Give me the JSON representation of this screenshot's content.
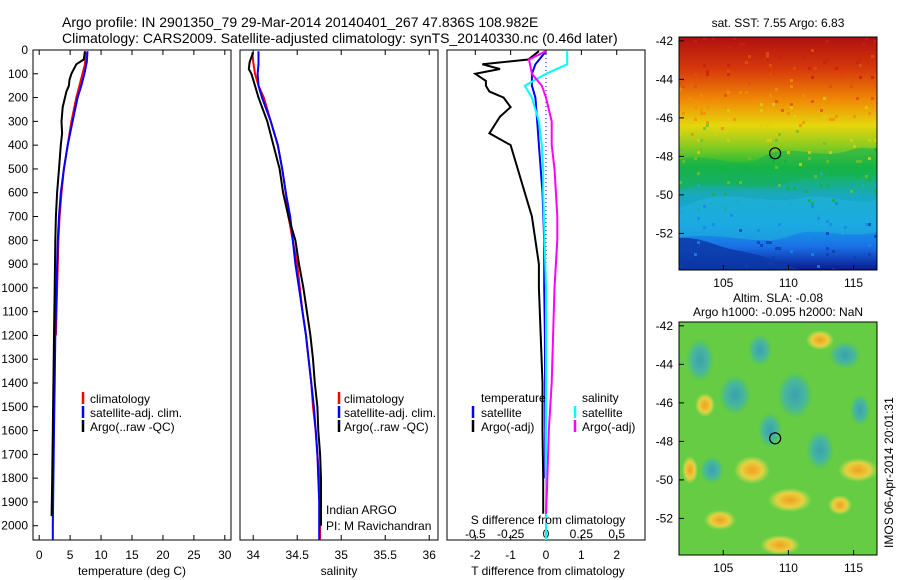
{
  "figure": {
    "title_line1": "Argo profile: IN 2901350_79 29-Mar-2014 20140401_267 47.836S 108.982E",
    "title_line2": "Climatology: CARS2009. Satellite-adjusted climatology: synTS_20140330.nc (0.46d later)",
    "credit": "IMOS 06-Apr-2014 20:01:31"
  },
  "colors": {
    "climatology": "#ff0000",
    "satellite": "#0000ff",
    "argo": "#000000",
    "sal_satellite": "#00ffff",
    "sal_argo": "#ff00ff"
  },
  "chart_data": [
    {
      "type": "line",
      "id": "temperature",
      "xlabel": "temperature (deg C)",
      "xlim": [
        -1,
        31
      ],
      "xticks": [
        0,
        5,
        10,
        15,
        20,
        25,
        30
      ],
      "ylim": [
        0,
        2060
      ],
      "yticks": [
        0,
        100,
        200,
        300,
        400,
        500,
        600,
        700,
        800,
        900,
        1000,
        1100,
        1200,
        1300,
        1400,
        1500,
        1600,
        1700,
        1800,
        1900,
        2000
      ],
      "legend": [
        "climatology",
        "satellite-adj. clim.",
        "Argo(..raw -QC)"
      ],
      "legend_pos": "lower-right",
      "series": [
        {
          "name": "climatology",
          "color": "#ff0000",
          "points": [
            [
              7.5,
              10
            ],
            [
              7.4,
              60
            ],
            [
              7.0,
              100
            ],
            [
              6.5,
              150
            ],
            [
              6.0,
              200
            ],
            [
              5.2,
              300
            ],
            [
              4.6,
              400
            ],
            [
              4.0,
              500
            ],
            [
              3.6,
              600
            ],
            [
              3.3,
              700
            ],
            [
              3.1,
              800
            ],
            [
              3.0,
              900
            ],
            [
              2.9,
              1000
            ],
            [
              2.8,
              1100
            ],
            [
              2.7,
              1200
            ]
          ]
        },
        {
          "name": "satellite-adj. clim.",
          "color": "#0000ff",
          "points": [
            [
              7.8,
              5
            ],
            [
              7.7,
              50
            ],
            [
              7.3,
              100
            ],
            [
              6.8,
              150
            ],
            [
              6.2,
              200
            ],
            [
              5.4,
              300
            ],
            [
              4.6,
              400
            ],
            [
              4.0,
              500
            ],
            [
              3.5,
              600
            ],
            [
              3.2,
              700
            ],
            [
              3.0,
              800
            ],
            [
              2.9,
              900
            ],
            [
              2.8,
              1000
            ],
            [
              2.7,
              1100
            ],
            [
              2.6,
              1200
            ],
            [
              2.5,
              1400
            ],
            [
              2.4,
              1600
            ],
            [
              2.3,
              1800
            ],
            [
              2.2,
              2000
            ],
            [
              2.2,
              2060
            ]
          ]
        },
        {
          "name": "Argo(..raw -QC)",
          "color": "#000000",
          "points": [
            [
              7.4,
              5
            ],
            [
              7.2,
              40
            ],
            [
              6.0,
              60
            ],
            [
              5.2,
              100
            ],
            [
              4.9,
              125
            ],
            [
              4.8,
              150
            ],
            [
              4.4,
              175
            ],
            [
              3.8,
              240
            ],
            [
              3.6,
              300
            ],
            [
              3.7,
              350
            ],
            [
              3.5,
              400
            ],
            [
              3.2,
              500
            ],
            [
              2.9,
              600
            ],
            [
              2.7,
              700
            ],
            [
              2.6,
              800
            ],
            [
              2.5,
              1000
            ],
            [
              2.4,
              1200
            ],
            [
              2.3,
              1400
            ],
            [
              2.2,
              1600
            ],
            [
              2.1,
              1800
            ],
            [
              2.0,
              1960
            ]
          ]
        }
      ]
    },
    {
      "type": "line",
      "id": "salinity",
      "xlabel": "salinity",
      "xlim": [
        33.85,
        36.1
      ],
      "xticks": [
        34,
        34.5,
        35,
        35.5,
        36
      ],
      "ylim": [
        0,
        2060
      ],
      "legend": [
        "climatology",
        "satellite-adj. clim.",
        "Argo(..raw -QC)"
      ],
      "legend_pos": "lower-right",
      "annotation_line1": "Indian ARGO",
      "annotation_line2": "PI: M Ravichandran",
      "series": [
        {
          "name": "climatology",
          "color": "#ff0000",
          "points": [
            [
              33.99,
              10
            ],
            [
              34.0,
              50
            ],
            [
              34.02,
              100
            ],
            [
              34.06,
              150
            ],
            [
              34.12,
              200
            ],
            [
              34.2,
              300
            ],
            [
              34.28,
              400
            ],
            [
              34.33,
              500
            ],
            [
              34.37,
              600
            ],
            [
              34.4,
              700
            ],
            [
              34.45,
              800
            ],
            [
              34.5,
              900
            ],
            [
              34.53,
              1000
            ],
            [
              34.56,
              1100
            ],
            [
              34.6,
              1200
            ],
            [
              34.63,
              1300
            ],
            [
              34.66,
              1400
            ],
            [
              34.68,
              1500
            ],
            [
              34.71,
              1600
            ],
            [
              34.73,
              1700
            ],
            [
              34.75,
              1800
            ],
            [
              34.76,
              1900
            ],
            [
              34.76,
              2060
            ]
          ]
        },
        {
          "name": "satellite-adj. clim.",
          "color": "#0000ff",
          "points": [
            [
              34.06,
              5
            ],
            [
              34.06,
              60
            ],
            [
              34.05,
              100
            ],
            [
              34.06,
              150
            ],
            [
              34.1,
              200
            ],
            [
              34.2,
              300
            ],
            [
              34.28,
              400
            ],
            [
              34.33,
              500
            ],
            [
              34.37,
              600
            ],
            [
              34.42,
              700
            ],
            [
              34.45,
              800
            ],
            [
              34.48,
              900
            ],
            [
              34.52,
              1000
            ],
            [
              34.56,
              1100
            ],
            [
              34.6,
              1200
            ],
            [
              34.63,
              1300
            ],
            [
              34.66,
              1400
            ],
            [
              34.69,
              1500
            ],
            [
              34.71,
              1600
            ],
            [
              34.73,
              1700
            ],
            [
              34.74,
              1800
            ],
            [
              34.75,
              1900
            ],
            [
              34.75,
              2060
            ]
          ]
        },
        {
          "name": "Argo(..raw -QC)",
          "color": "#000000",
          "points": [
            [
              34.0,
              10
            ],
            [
              33.96,
              50
            ],
            [
              33.95,
              80
            ],
            [
              33.98,
              100
            ],
            [
              34.02,
              150
            ],
            [
              34.06,
              200
            ],
            [
              34.16,
              300
            ],
            [
              34.23,
              400
            ],
            [
              34.3,
              500
            ],
            [
              34.34,
              600
            ],
            [
              34.4,
              700
            ],
            [
              34.48,
              800
            ],
            [
              34.52,
              900
            ],
            [
              34.57,
              1000
            ],
            [
              34.61,
              1100
            ],
            [
              34.65,
              1200
            ],
            [
              34.68,
              1300
            ],
            [
              34.7,
              1400
            ],
            [
              34.73,
              1500
            ],
            [
              34.74,
              1600
            ],
            [
              34.76,
              1700
            ],
            [
              34.77,
              1800
            ],
            [
              34.77,
              1900
            ],
            [
              34.77,
              2000
            ]
          ]
        }
      ]
    },
    {
      "type": "line",
      "id": "difference",
      "xlabel": "T difference from climatology",
      "xlabel_top": "S difference from climatology",
      "xlim": [
        -2.8,
        2.8
      ],
      "xticks": [
        -2,
        -1,
        0,
        1,
        2
      ],
      "s_ticks": [
        {
          "v": -0.5,
          "label": "-0.5"
        },
        {
          "v": -0.25,
          "label": "-0.25"
        },
        {
          "v": 0,
          "label": "0"
        },
        {
          "v": 0.25,
          "label": "0.25"
        },
        {
          "v": 0.5,
          "label": "0.5"
        }
      ],
      "s_scale": 4,
      "ylim": [
        0,
        2060
      ],
      "legend_temperature_title": "temperature",
      "legend_salinity_title": "salinity",
      "legend": [
        "satellite",
        "Argo(-adj)",
        "satellite",
        "Argo(-adj)"
      ],
      "series": [
        {
          "name": "T satellite",
          "color": "#0000ff",
          "points": [
            [
              0,
              5
            ],
            [
              -0.3,
              60
            ],
            [
              -0.4,
              100
            ],
            [
              -0.4,
              150
            ],
            [
              -0.3,
              200
            ],
            [
              -0.25,
              300
            ],
            [
              -0.2,
              400
            ],
            [
              -0.15,
              500
            ],
            [
              -0.1,
              600
            ],
            [
              -0.05,
              800
            ],
            [
              -0.05,
              1000
            ],
            [
              -0.03,
              1200
            ],
            [
              -0.02,
              1600
            ],
            [
              -0.02,
              1800
            ]
          ]
        },
        {
          "name": "T Argo(-adj)",
          "color": "#000000",
          "points": [
            [
              -0.2,
              5
            ],
            [
              -0.5,
              40
            ],
            [
              -1.8,
              60
            ],
            [
              -1.3,
              80
            ],
            [
              -2.0,
              100
            ],
            [
              -1.7,
              130
            ],
            [
              -1.7,
              150
            ],
            [
              -1.6,
              175
            ],
            [
              -1.2,
              200
            ],
            [
              -1.0,
              240
            ],
            [
              -1.3,
              280
            ],
            [
              -1.6,
              350
            ],
            [
              -1.0,
              400
            ],
            [
              -0.8,
              500
            ],
            [
              -0.6,
              600
            ],
            [
              -0.4,
              700
            ],
            [
              -0.3,
              800
            ],
            [
              -0.2,
              900
            ],
            [
              -0.2,
              1000
            ],
            [
              -0.15,
              1200
            ],
            [
              -0.1,
              1400
            ],
            [
              -0.1,
              1600
            ],
            [
              -0.08,
              1800
            ],
            [
              -0.08,
              1950
            ]
          ]
        },
        {
          "name": "S satellite",
          "color": "#00ffff",
          "points": [
            [
              0.15,
              5
            ],
            [
              0.15,
              60
            ],
            [
              0,
              100
            ],
            [
              -0.15,
              150
            ],
            [
              -0.1,
              200
            ],
            [
              -0.05,
              300
            ],
            [
              -0.03,
              400
            ],
            [
              -0.02,
              500
            ],
            [
              -0.02,
              600
            ],
            [
              -0.01,
              800
            ],
            [
              0,
              1000
            ],
            [
              0,
              1200
            ],
            [
              0,
              1600
            ],
            [
              0,
              1800
            ],
            [
              0,
              2000
            ],
            [
              0,
              2060
            ]
          ]
        },
        {
          "name": "S Argo(-adj)",
          "color": "#ff00ff",
          "points": [
            [
              0.0,
              5
            ],
            [
              -0.12,
              40
            ],
            [
              -0.1,
              100
            ],
            [
              -0.03,
              150
            ],
            [
              0,
              200
            ],
            [
              0.04,
              300
            ],
            [
              0.04,
              400
            ],
            [
              0.06,
              500
            ],
            [
              0.07,
              600
            ],
            [
              0.08,
              700
            ],
            [
              0.08,
              800
            ],
            [
              0.07,
              900
            ],
            [
              0.06,
              1000
            ],
            [
              0.05,
              1200
            ],
            [
              0.04,
              1400
            ],
            [
              0.02,
              1600
            ],
            [
              0.01,
              1800
            ],
            [
              0,
              1950
            ]
          ]
        }
      ]
    },
    {
      "type": "heatmap",
      "id": "sst_map",
      "title": "sat. SST: 7.55 Argo: 6.83",
      "xlim": [
        101.6,
        116.8
      ],
      "ylim": [
        -53.9,
        -41.8
      ],
      "xticks": [
        105,
        110,
        115
      ],
      "yticks": [
        -52,
        -50,
        -48,
        -46,
        -44,
        -42
      ],
      "marker": [
        108.98,
        -47.84
      ]
    },
    {
      "type": "heatmap",
      "id": "sla_map",
      "title_line1": "Altim. SLA: -0.08",
      "title_line2": "Argo h1000: -0.095 h2000: NaN",
      "xlim": [
        101.6,
        116.8
      ],
      "ylim": [
        -53.9,
        -41.8
      ],
      "xticks": [
        105,
        110,
        115
      ],
      "yticks": [
        -52,
        -50,
        -48,
        -46,
        -44,
        -42
      ],
      "marker": [
        108.98,
        -47.84
      ]
    }
  ]
}
